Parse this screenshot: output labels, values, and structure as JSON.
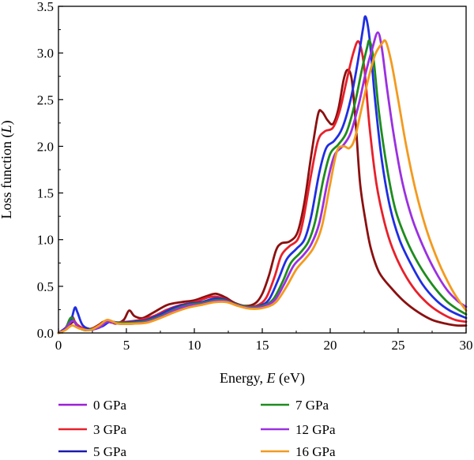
{
  "chart_data": {
    "type": "line",
    "xlabel_prefix": "Energy, ",
    "xlabel_var": "E",
    "xlabel_suffix": " (eV)",
    "ylabel_prefix": "Loss function (",
    "ylabel_var": "L",
    "ylabel_suffix": ")",
    "xlim": [
      0,
      30
    ],
    "ylim": [
      0,
      3.5
    ],
    "xticks": [
      0,
      5,
      10,
      15,
      20,
      25,
      30
    ],
    "xtick_labels": [
      "0",
      "5",
      "10",
      "15",
      "20",
      "25",
      "30"
    ],
    "yticks": [
      0,
      0.5,
      1.0,
      1.5,
      2.0,
      2.5,
      3.0,
      3.5
    ],
    "ytick_labels": [
      "0.0",
      "0.5",
      "1.0",
      "1.5",
      "2.0",
      "2.5",
      "3.0",
      "3.5"
    ],
    "grid": false,
    "legend_placement": "bottom",
    "series": [
      {
        "name": "0 GPa",
        "legend_color": "#9b1fd6",
        "color": "#8b1010",
        "points": [
          [
            0,
            0
          ],
          [
            0.5,
            0.05
          ],
          [
            0.9,
            0.1
          ],
          [
            1.2,
            0.12
          ],
          [
            1.5,
            0.06
          ],
          [
            2,
            0.03
          ],
          [
            2.5,
            0.05
          ],
          [
            3,
            0.09
          ],
          [
            3.3,
            0.12
          ],
          [
            3.7,
            0.13
          ],
          [
            4.2,
            0.1
          ],
          [
            4.8,
            0.14
          ],
          [
            5.2,
            0.24
          ],
          [
            5.6,
            0.18
          ],
          [
            6.2,
            0.16
          ],
          [
            7,
            0.22
          ],
          [
            8,
            0.3
          ],
          [
            9,
            0.33
          ],
          [
            10,
            0.35
          ],
          [
            11,
            0.4
          ],
          [
            11.6,
            0.42
          ],
          [
            12.3,
            0.38
          ],
          [
            13,
            0.32
          ],
          [
            13.8,
            0.29
          ],
          [
            14.5,
            0.32
          ],
          [
            15,
            0.42
          ],
          [
            15.5,
            0.62
          ],
          [
            16,
            0.88
          ],
          [
            16.4,
            0.96
          ],
          [
            17,
            0.98
          ],
          [
            17.6,
            1.08
          ],
          [
            18.1,
            1.4
          ],
          [
            18.6,
            1.9
          ],
          [
            19.1,
            2.34
          ],
          [
            19.4,
            2.37
          ],
          [
            19.8,
            2.28
          ],
          [
            20.2,
            2.24
          ],
          [
            20.6,
            2.4
          ],
          [
            21,
            2.72
          ],
          [
            21.3,
            2.82
          ],
          [
            21.6,
            2.7
          ],
          [
            21.9,
            2.2
          ],
          [
            22.2,
            1.6
          ],
          [
            22.6,
            1.2
          ],
          [
            23,
            0.9
          ],
          [
            23.6,
            0.65
          ],
          [
            24.5,
            0.48
          ],
          [
            25.5,
            0.33
          ],
          [
            26.5,
            0.22
          ],
          [
            27.5,
            0.14
          ],
          [
            28.5,
            0.1
          ],
          [
            29.3,
            0.08
          ],
          [
            30,
            0.08
          ]
        ]
      },
      {
        "name": "3 GPa",
        "legend_color": "#e8202a",
        "color": "#e8202a",
        "points": [
          [
            0,
            0
          ],
          [
            0.5,
            0.05
          ],
          [
            1,
            0.17
          ],
          [
            1.3,
            0.1
          ],
          [
            2,
            0.04
          ],
          [
            2.7,
            0.06
          ],
          [
            3.5,
            0.12
          ],
          [
            4,
            0.11
          ],
          [
            5,
            0.12
          ],
          [
            6,
            0.14
          ],
          [
            7,
            0.18
          ],
          [
            8,
            0.25
          ],
          [
            9,
            0.3
          ],
          [
            10,
            0.33
          ],
          [
            11,
            0.38
          ],
          [
            11.6,
            0.39
          ],
          [
            12.3,
            0.36
          ],
          [
            13,
            0.31
          ],
          [
            14,
            0.28
          ],
          [
            14.7,
            0.3
          ],
          [
            15.3,
            0.38
          ],
          [
            15.9,
            0.6
          ],
          [
            16.4,
            0.83
          ],
          [
            17,
            0.93
          ],
          [
            17.6,
            1.0
          ],
          [
            18,
            1.2
          ],
          [
            18.6,
            1.7
          ],
          [
            19.1,
            2.06
          ],
          [
            19.6,
            2.16
          ],
          [
            20.2,
            2.2
          ],
          [
            20.7,
            2.38
          ],
          [
            21.2,
            2.7
          ],
          [
            21.7,
            3.0
          ],
          [
            22.1,
            3.12
          ],
          [
            22.5,
            2.85
          ],
          [
            22.9,
            2.2
          ],
          [
            23.4,
            1.6
          ],
          [
            24,
            1.18
          ],
          [
            24.6,
            0.9
          ],
          [
            25.4,
            0.65
          ],
          [
            26.3,
            0.45
          ],
          [
            27.3,
            0.3
          ],
          [
            28.3,
            0.2
          ],
          [
            29.2,
            0.14
          ],
          [
            30,
            0.12
          ]
        ]
      },
      {
        "name": "5 GPa",
        "legend_color": "#1a1ab0",
        "color": "#1f2ee0",
        "points": [
          [
            0,
            0
          ],
          [
            0.5,
            0.05
          ],
          [
            0.9,
            0.12
          ],
          [
            1.2,
            0.27
          ],
          [
            1.4,
            0.22
          ],
          [
            1.8,
            0.08
          ],
          [
            2.5,
            0.04
          ],
          [
            3.2,
            0.07
          ],
          [
            3.8,
            0.12
          ],
          [
            4.5,
            0.11
          ],
          [
            5.5,
            0.12
          ],
          [
            6.5,
            0.14
          ],
          [
            7.5,
            0.2
          ],
          [
            8.5,
            0.27
          ],
          [
            9.5,
            0.31
          ],
          [
            10.5,
            0.33
          ],
          [
            11.5,
            0.37
          ],
          [
            12.2,
            0.36
          ],
          [
            13,
            0.31
          ],
          [
            14,
            0.28
          ],
          [
            14.8,
            0.29
          ],
          [
            15.5,
            0.36
          ],
          [
            16.2,
            0.58
          ],
          [
            16.8,
            0.79
          ],
          [
            17.5,
            0.9
          ],
          [
            18.1,
            1.0
          ],
          [
            18.6,
            1.25
          ],
          [
            19.2,
            1.72
          ],
          [
            19.7,
            1.98
          ],
          [
            20.3,
            2.06
          ],
          [
            20.9,
            2.2
          ],
          [
            21.5,
            2.5
          ],
          [
            22,
            2.88
          ],
          [
            22.4,
            3.25
          ],
          [
            22.6,
            3.39
          ],
          [
            22.9,
            3.15
          ],
          [
            23.3,
            2.5
          ],
          [
            23.8,
            1.85
          ],
          [
            24.4,
            1.35
          ],
          [
            25.1,
            1.0
          ],
          [
            25.9,
            0.75
          ],
          [
            26.8,
            0.52
          ],
          [
            27.8,
            0.35
          ],
          [
            28.8,
            0.24
          ],
          [
            30,
            0.16
          ]
        ]
      },
      {
        "name": "7 GPa",
        "legend_color": "#1e8c1e",
        "color": "#1e8c1e",
        "points": [
          [
            0,
            0
          ],
          [
            0.5,
            0.04
          ],
          [
            0.8,
            0.14
          ],
          [
            1,
            0.16
          ],
          [
            1.4,
            0.07
          ],
          [
            2,
            0.03
          ],
          [
            2.8,
            0.06
          ],
          [
            3.5,
            0.12
          ],
          [
            4.3,
            0.11
          ],
          [
            5.5,
            0.11
          ],
          [
            6.5,
            0.13
          ],
          [
            7.5,
            0.18
          ],
          [
            8.5,
            0.25
          ],
          [
            9.5,
            0.3
          ],
          [
            10.5,
            0.32
          ],
          [
            11.5,
            0.35
          ],
          [
            12.2,
            0.35
          ],
          [
            13,
            0.31
          ],
          [
            14,
            0.28
          ],
          [
            15,
            0.29
          ],
          [
            15.8,
            0.36
          ],
          [
            16.5,
            0.55
          ],
          [
            17.1,
            0.75
          ],
          [
            17.8,
            0.86
          ],
          [
            18.4,
            0.98
          ],
          [
            18.9,
            1.2
          ],
          [
            19.5,
            1.65
          ],
          [
            20,
            1.92
          ],
          [
            20.6,
            2.02
          ],
          [
            21.2,
            2.15
          ],
          [
            21.8,
            2.45
          ],
          [
            22.3,
            2.8
          ],
          [
            22.7,
            3.05
          ],
          [
            22.9,
            3.13
          ],
          [
            23.2,
            2.92
          ],
          [
            23.6,
            2.35
          ],
          [
            24.2,
            1.75
          ],
          [
            24.8,
            1.32
          ],
          [
            25.6,
            1.0
          ],
          [
            26.5,
            0.74
          ],
          [
            27.5,
            0.52
          ],
          [
            28.5,
            0.35
          ],
          [
            29.3,
            0.26
          ],
          [
            30,
            0.2
          ]
        ]
      },
      {
        "name": "12 GPa",
        "legend_color": "#9b30e0",
        "color": "#9b30e0",
        "points": [
          [
            0,
            0
          ],
          [
            0.5,
            0.04
          ],
          [
            0.8,
            0.1
          ],
          [
            1.1,
            0.13
          ],
          [
            1.5,
            0.06
          ],
          [
            2.2,
            0.03
          ],
          [
            3,
            0.06
          ],
          [
            3.6,
            0.12
          ],
          [
            4.4,
            0.1
          ],
          [
            5.5,
            0.1
          ],
          [
            6.5,
            0.12
          ],
          [
            7.5,
            0.17
          ],
          [
            8.5,
            0.24
          ],
          [
            9.5,
            0.29
          ],
          [
            10.5,
            0.31
          ],
          [
            11.5,
            0.34
          ],
          [
            12.3,
            0.34
          ],
          [
            13.1,
            0.3
          ],
          [
            14,
            0.27
          ],
          [
            15,
            0.28
          ],
          [
            15.9,
            0.35
          ],
          [
            16.6,
            0.52
          ],
          [
            17.3,
            0.72
          ],
          [
            18,
            0.83
          ],
          [
            18.6,
            0.95
          ],
          [
            19.2,
            1.18
          ],
          [
            19.8,
            1.62
          ],
          [
            20.3,
            1.9
          ],
          [
            20.9,
            2.0
          ],
          [
            21.5,
            2.14
          ],
          [
            22.1,
            2.45
          ],
          [
            22.6,
            2.78
          ],
          [
            23.1,
            3.05
          ],
          [
            23.5,
            3.22
          ],
          [
            23.8,
            3.05
          ],
          [
            24.2,
            2.6
          ],
          [
            24.7,
            2.1
          ],
          [
            25.3,
            1.62
          ],
          [
            26,
            1.24
          ],
          [
            26.8,
            0.94
          ],
          [
            27.7,
            0.67
          ],
          [
            28.6,
            0.46
          ],
          [
            29.4,
            0.34
          ],
          [
            30,
            0.28
          ]
        ]
      },
      {
        "name": "16 GPa",
        "legend_color": "#f39a1e",
        "color": "#f39a1e",
        "points": [
          [
            0,
            0
          ],
          [
            0.5,
            0.03
          ],
          [
            1,
            0.08
          ],
          [
            1.5,
            0.05
          ],
          [
            2.3,
            0.03
          ],
          [
            3,
            0.08
          ],
          [
            3.6,
            0.14
          ],
          [
            4.4,
            0.1
          ],
          [
            5.5,
            0.1
          ],
          [
            6.5,
            0.11
          ],
          [
            7.5,
            0.16
          ],
          [
            8.5,
            0.22
          ],
          [
            9.5,
            0.27
          ],
          [
            10.5,
            0.3
          ],
          [
            11.5,
            0.33
          ],
          [
            12.4,
            0.33
          ],
          [
            13.2,
            0.29
          ],
          [
            14.1,
            0.26
          ],
          [
            15.1,
            0.27
          ],
          [
            16,
            0.33
          ],
          [
            16.8,
            0.5
          ],
          [
            17.5,
            0.68
          ],
          [
            18.2,
            0.8
          ],
          [
            18.8,
            0.92
          ],
          [
            19.4,
            1.15
          ],
          [
            20,
            1.6
          ],
          [
            20.5,
            1.95
          ],
          [
            21,
            2.0
          ],
          [
            21.4,
            1.98
          ],
          [
            21.8,
            2.08
          ],
          [
            22.3,
            2.4
          ],
          [
            22.8,
            2.72
          ],
          [
            23.3,
            2.98
          ],
          [
            23.8,
            3.1
          ],
          [
            24.1,
            3.12
          ],
          [
            24.5,
            2.9
          ],
          [
            25,
            2.5
          ],
          [
            25.6,
            2.0
          ],
          [
            26.3,
            1.52
          ],
          [
            27.1,
            1.1
          ],
          [
            28,
            0.75
          ],
          [
            28.9,
            0.48
          ],
          [
            29.5,
            0.34
          ],
          [
            30,
            0.24
          ]
        ]
      }
    ]
  }
}
